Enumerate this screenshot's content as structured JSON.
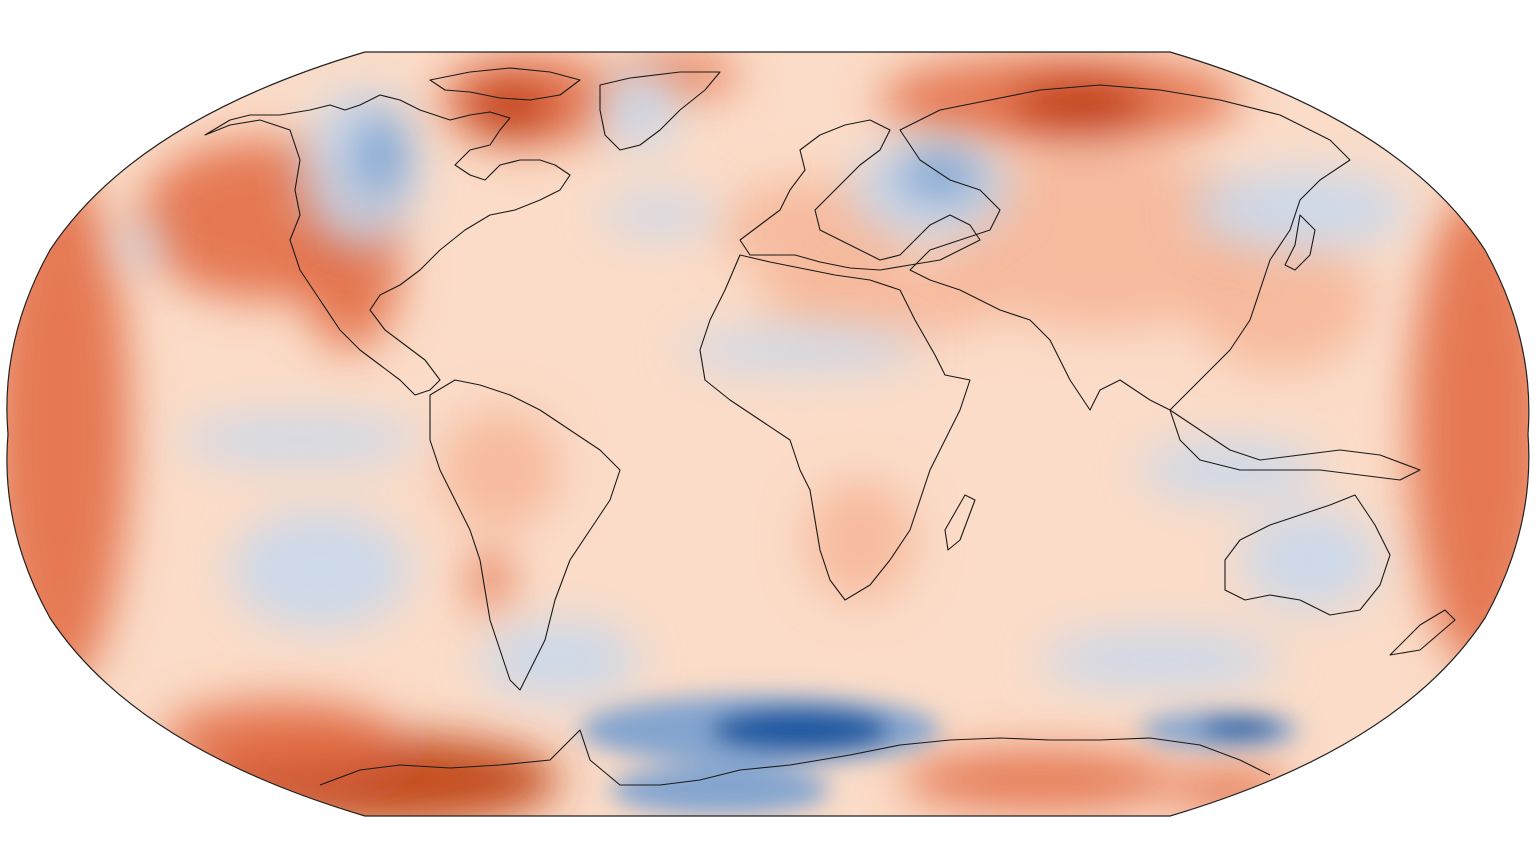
{
  "map": {
    "projection": "Robinson",
    "colormap": "RdBu_r",
    "ocean_base_color": "#fbdcc8",
    "frame_color": "#222222",
    "coastline_color": "#1a1a1a",
    "colors": {
      "deep_red": "#b83200",
      "red": "#e2693f",
      "light_red": "#f6b596",
      "pale": "#fde8dc",
      "white": "#f7f7f7",
      "light_blue": "#c6d8ee",
      "blue": "#6f9bd0",
      "deep_blue": "#0b4a98"
    }
  }
}
